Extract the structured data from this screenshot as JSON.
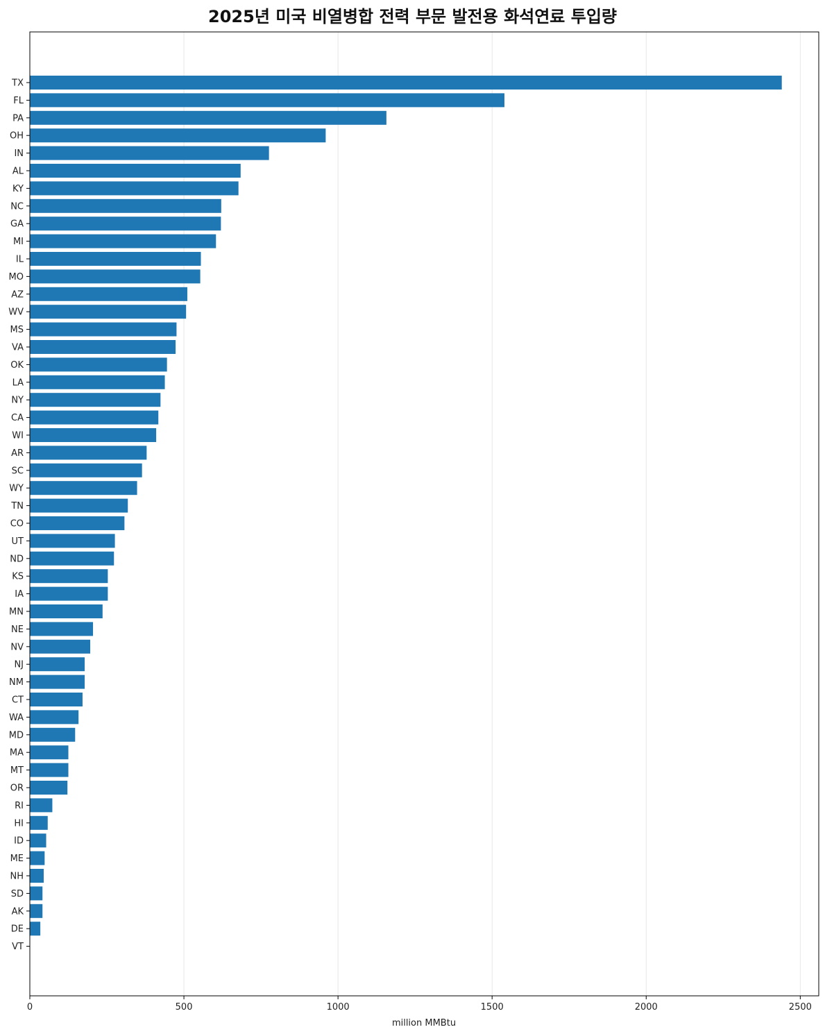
{
  "chart_data": {
    "type": "bar",
    "orientation": "horizontal",
    "title": "2025년 미국 비열병합 전력 부문 발전용 화석연료 투입량",
    "xlabel": "million MMBtu",
    "ylabel": "",
    "xlim": [
      0,
      2560
    ],
    "xticks": [
      0,
      500,
      1000,
      1500,
      2000,
      2500
    ],
    "grid": "x",
    "bar_color": "#1f77b4",
    "categories": [
      "TX",
      "FL",
      "PA",
      "OH",
      "IN",
      "AL",
      "KY",
      "NC",
      "GA",
      "MI",
      "IL",
      "MO",
      "AZ",
      "WV",
      "MS",
      "VA",
      "OK",
      "LA",
      "NY",
      "CA",
      "WI",
      "AR",
      "SC",
      "WY",
      "TN",
      "CO",
      "UT",
      "ND",
      "KS",
      "IA",
      "MN",
      "NE",
      "NV",
      "NJ",
      "NM",
      "CT",
      "WA",
      "MD",
      "MA",
      "MT",
      "OR",
      "RI",
      "HI",
      "ID",
      "ME",
      "NH",
      "SD",
      "AK",
      "DE",
      "VT"
    ],
    "values": [
      2440,
      1540,
      1157,
      960,
      776,
      684,
      677,
      621,
      620,
      604,
      555,
      553,
      511,
      507,
      476,
      473,
      445,
      438,
      424,
      417,
      410,
      379,
      364,
      348,
      318,
      307,
      276,
      273,
      253,
      253,
      236,
      205,
      196,
      178,
      178,
      171,
      158,
      147,
      125,
      125,
      122,
      73,
      58,
      53,
      48,
      45,
      41,
      41,
      34,
      0
    ]
  }
}
